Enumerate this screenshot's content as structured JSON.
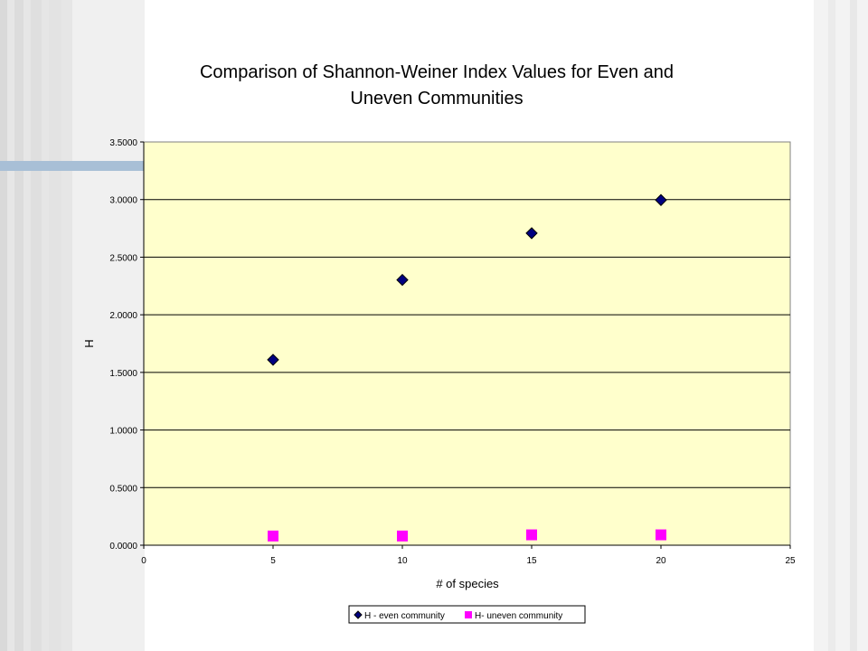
{
  "chart_data": {
    "type": "scatter",
    "title_lines": [
      "Comparison of Shannon-Weiner Index Values for Even and",
      "Uneven Communities"
    ],
    "xlabel": "# of species",
    "ylabel": "H",
    "xlim": [
      0,
      25
    ],
    "ylim": [
      0,
      3.5
    ],
    "x_ticks": [
      "0",
      "5",
      "10",
      "15",
      "20",
      "25"
    ],
    "y_ticks": [
      "0.0000",
      "0.5000",
      "1.0000",
      "1.5000",
      "2.0000",
      "2.5000",
      "3.0000",
      "3.5000"
    ],
    "grid": "horizontal",
    "legend_position": "bottom",
    "series": [
      {
        "name": "H - even community",
        "marker": "diamond",
        "color": "#000080",
        "x": [
          5,
          10,
          15,
          20
        ],
        "y": [
          1.6094,
          2.3026,
          2.7081,
          2.9957
        ]
      },
      {
        "name": "H- uneven community",
        "marker": "square",
        "color": "#ff00ff",
        "x": [
          5,
          10,
          15,
          20
        ],
        "y": [
          0.08,
          0.08,
          0.09,
          0.09
        ]
      }
    ]
  },
  "colors": {
    "plot_background": "#ffffcc",
    "stripe_light": "#eeeeee",
    "stripe_dark": "#dcdcdc",
    "accent_bar": "#a8bfd6"
  }
}
